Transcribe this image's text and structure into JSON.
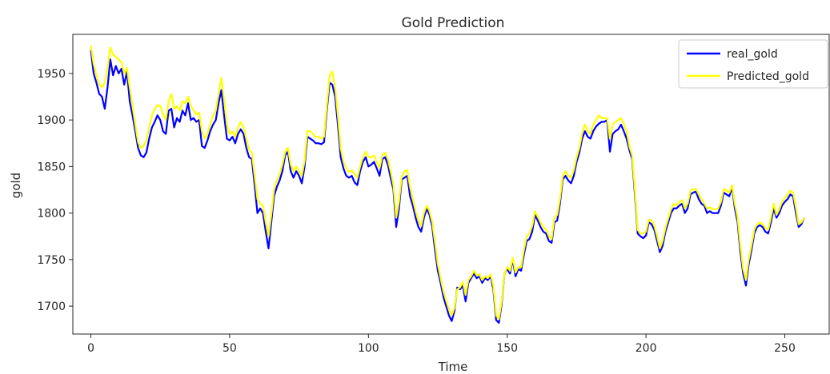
{
  "chart_data": {
    "type": "line",
    "title": "Gold Prediction",
    "xlabel": "Time",
    "ylabel": "gold",
    "xlim": [
      -6.5,
      266
    ],
    "ylim": [
      1670,
      1992
    ],
    "xticks": [
      0,
      50,
      100,
      150,
      200,
      250
    ],
    "yticks": [
      1700,
      1750,
      1800,
      1850,
      1900,
      1950
    ],
    "grid": false,
    "legend_position": "top-right",
    "series": [
      {
        "name": "real_gold",
        "color": "#0000ff",
        "values": [
          1975,
          1950,
          1940,
          1928,
          1925,
          1912,
          1935,
          1965,
          1948,
          1958,
          1950,
          1955,
          1938,
          1952,
          1920,
          1905,
          1888,
          1870,
          1862,
          1860,
          1865,
          1880,
          1892,
          1898,
          1905,
          1900,
          1888,
          1885,
          1910,
          1912,
          1892,
          1902,
          1898,
          1910,
          1905,
          1918,
          1900,
          1902,
          1898,
          1900,
          1872,
          1870,
          1878,
          1888,
          1895,
          1900,
          1918,
          1932,
          1905,
          1880,
          1878,
          1882,
          1875,
          1885,
          1890,
          1885,
          1870,
          1860,
          1858,
          1830,
          1800,
          1805,
          1800,
          1780,
          1762,
          1790,
          1818,
          1828,
          1835,
          1845,
          1862,
          1866,
          1845,
          1838,
          1845,
          1840,
          1832,
          1850,
          1882,
          1880,
          1878,
          1875,
          1875,
          1874,
          1876,
          1910,
          1940,
          1938,
          1925,
          1895,
          1860,
          1848,
          1840,
          1838,
          1840,
          1833,
          1830,
          1845,
          1855,
          1860,
          1850,
          1852,
          1855,
          1848,
          1840,
          1858,
          1860,
          1852,
          1838,
          1825,
          1785,
          1805,
          1836,
          1838,
          1840,
          1818,
          1808,
          1795,
          1785,
          1780,
          1795,
          1805,
          1798,
          1785,
          1760,
          1738,
          1725,
          1710,
          1700,
          1690,
          1684,
          1695,
          1720,
          1718,
          1722,
          1705,
          1725,
          1730,
          1735,
          1730,
          1732,
          1725,
          1730,
          1728,
          1732,
          1718,
          1685,
          1682,
          1702,
          1735,
          1740,
          1735,
          1750,
          1732,
          1740,
          1738,
          1755,
          1770,
          1772,
          1780,
          1798,
          1792,
          1785,
          1780,
          1778,
          1770,
          1768,
          1790,
          1792,
          1810,
          1836,
          1840,
          1835,
          1832,
          1840,
          1855,
          1865,
          1880,
          1888,
          1882,
          1880,
          1888,
          1893,
          1896,
          1898,
          1898,
          1900,
          1866,
          1885,
          1888,
          1890,
          1895,
          1888,
          1880,
          1868,
          1858,
          1820,
          1778,
          1775,
          1773,
          1776,
          1790,
          1788,
          1782,
          1770,
          1758,
          1765,
          1780,
          1790,
          1800,
          1805,
          1805,
          1808,
          1810,
          1800,
          1805,
          1820,
          1822,
          1823,
          1815,
          1810,
          1808,
          1800,
          1802,
          1800,
          1800,
          1800,
          1808,
          1822,
          1820,
          1818,
          1828,
          1805,
          1790,
          1758,
          1735,
          1722,
          1745,
          1760,
          1778,
          1785,
          1787,
          1785,
          1780,
          1778,
          1790,
          1805,
          1795,
          1800,
          1808,
          1812,
          1815,
          1820,
          1818,
          1800,
          1785,
          1788,
          1795
        ],
        "note": ""
      },
      {
        "name": "Predicted_gold",
        "color": "#ffff00",
        "values": [
          1980,
          1960,
          1948,
          1938,
          1935,
          1940,
          1955,
          1978,
          1970,
          1968,
          1965,
          1962,
          1950,
          1956,
          1935,
          1915,
          1895,
          1876,
          1870,
          1872,
          1878,
          1892,
          1905,
          1912,
          1916,
          1915,
          1906,
          1900,
          1920,
          1928,
          1912,
          1915,
          1910,
          1920,
          1918,
          1925,
          1915,
          1910,
          1906,
          1908,
          1888,
          1880,
          1885,
          1895,
          1905,
          1910,
          1928,
          1945,
          1922,
          1895,
          1885,
          1888,
          1882,
          1892,
          1898,
          1892,
          1880,
          1868,
          1865,
          1840,
          1815,
          1810,
          1808,
          1790,
          1775,
          1798,
          1825,
          1835,
          1842,
          1852,
          1866,
          1870,
          1852,
          1845,
          1850,
          1845,
          1840,
          1856,
          1888,
          1888,
          1885,
          1882,
          1882,
          1880,
          1882,
          1915,
          1948,
          1952,
          1935,
          1905,
          1870,
          1855,
          1848,
          1844,
          1846,
          1842,
          1838,
          1850,
          1860,
          1866,
          1860,
          1860,
          1862,
          1855,
          1848,
          1862,
          1865,
          1858,
          1845,
          1830,
          1795,
          1812,
          1840,
          1845,
          1846,
          1828,
          1815,
          1802,
          1792,
          1786,
          1800,
          1808,
          1802,
          1790,
          1768,
          1745,
          1730,
          1716,
          1706,
          1696,
          1690,
          1698,
          1718,
          1720,
          1726,
          1712,
          1728,
          1732,
          1738,
          1733,
          1734,
          1728,
          1732,
          1730,
          1734,
          1722,
          1690,
          1686,
          1705,
          1735,
          1742,
          1738,
          1752,
          1736,
          1742,
          1742,
          1760,
          1775,
          1778,
          1786,
          1802,
          1796,
          1790,
          1785,
          1782,
          1775,
          1772,
          1795,
          1798,
          1815,
          1840,
          1845,
          1840,
          1838,
          1846,
          1860,
          1870,
          1886,
          1895,
          1888,
          1885,
          1895,
          1900,
          1905,
          1902,
          1902,
          1902,
          1880,
          1895,
          1898,
          1900,
          1902,
          1896,
          1888,
          1872,
          1862,
          1825,
          1782,
          1778,
          1778,
          1780,
          1793,
          1792,
          1786,
          1775,
          1762,
          1770,
          1784,
          1794,
          1804,
          1810,
          1808,
          1812,
          1814,
          1805,
          1810,
          1824,
          1826,
          1826,
          1820,
          1815,
          1810,
          1805,
          1806,
          1804,
          1804,
          1805,
          1812,
          1826,
          1824,
          1822,
          1830,
          1810,
          1795,
          1765,
          1740,
          1728,
          1750,
          1765,
          1782,
          1788,
          1790,
          1788,
          1784,
          1782,
          1795,
          1810,
          1798,
          1804,
          1812,
          1816,
          1820,
          1824,
          1822,
          1806,
          1788,
          1790,
          1795
        ],
        "note": ""
      }
    ]
  }
}
